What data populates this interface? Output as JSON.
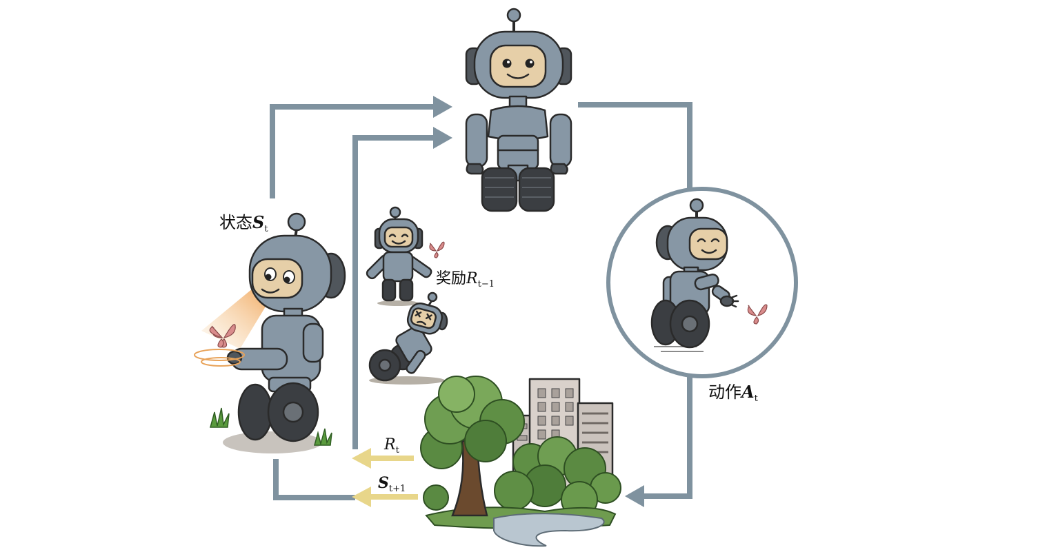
{
  "labels": {
    "state": {
      "text": "状态",
      "symbol": "S",
      "subscript": "t"
    },
    "reward_previous": {
      "text": "奖励",
      "symbol": "R",
      "subscript": "t−1"
    },
    "action": {
      "text": "动作",
      "symbol": "A",
      "subscript": "t"
    },
    "reward": {
      "symbol": "R",
      "subscript": "t"
    },
    "next_state": {
      "symbol": "S",
      "subscript": "t+1"
    }
  },
  "colors": {
    "loop_arrow": "#7f929f",
    "reward_arrow": "#e8d68a",
    "robot_body": "#8797a5",
    "robot_face": "#e6cfa8"
  }
}
